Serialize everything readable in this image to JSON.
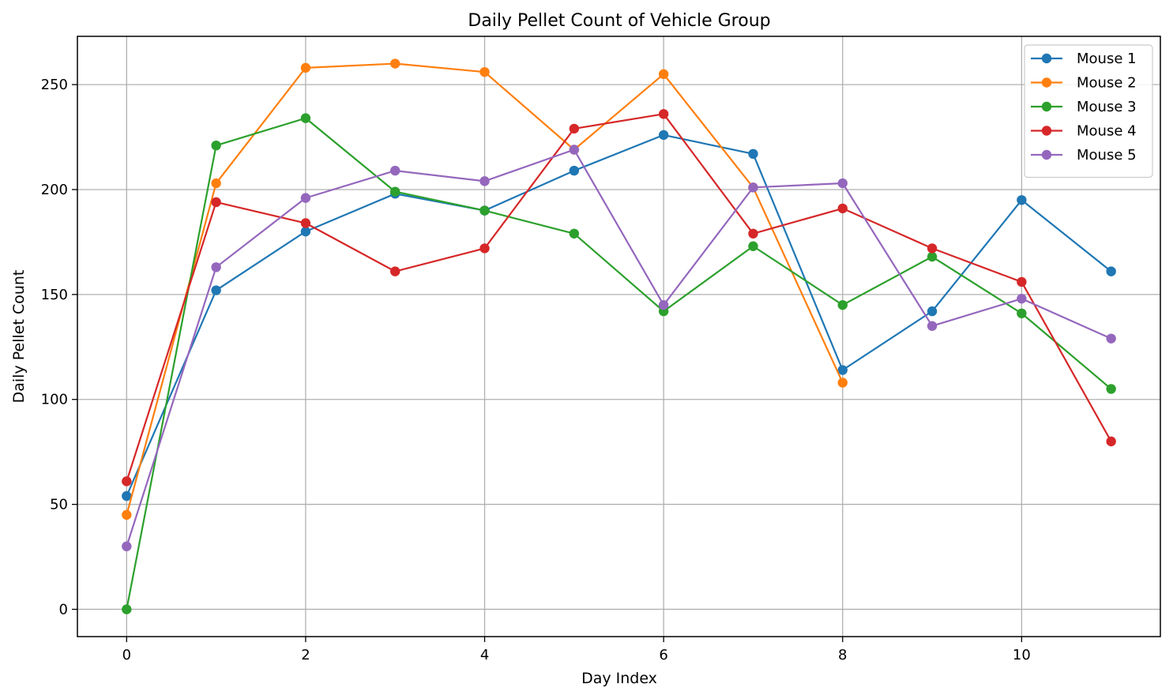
{
  "chart_data": {
    "type": "line",
    "title": "Daily Pellet Count of Vehicle Group",
    "xlabel": "Day Index",
    "ylabel": "Daily Pellet Count",
    "xlim": [
      -0.55,
      11.55
    ],
    "ylim": [
      -13,
      273
    ],
    "x_ticks": [
      0,
      2,
      4,
      6,
      8,
      10
    ],
    "y_ticks": [
      0,
      50,
      100,
      150,
      200,
      250
    ],
    "grid": true,
    "legend_position": "upper right",
    "x": [
      0,
      1,
      2,
      3,
      4,
      5,
      6,
      7,
      8,
      9,
      10,
      11
    ],
    "series": [
      {
        "name": "Mouse 1",
        "color": "#1f77b4",
        "values": [
          54,
          152,
          180,
          198,
          190,
          209,
          226,
          217,
          114,
          142,
          195,
          161
        ]
      },
      {
        "name": "Mouse 2",
        "color": "#ff7f0e",
        "values": [
          45,
          203,
          258,
          260,
          256,
          219,
          255,
          201,
          108,
          null,
          null,
          null
        ]
      },
      {
        "name": "Mouse 3",
        "color": "#2ca02c",
        "values": [
          0,
          221,
          234,
          199,
          190,
          179,
          142,
          173,
          145,
          168,
          141,
          105
        ]
      },
      {
        "name": "Mouse 4",
        "color": "#d62728",
        "values": [
          61,
          194,
          184,
          161,
          172,
          229,
          236,
          179,
          191,
          172,
          156,
          80
        ]
      },
      {
        "name": "Mouse 5",
        "color": "#9467bd",
        "values": [
          30,
          163,
          196,
          209,
          204,
          219,
          145,
          201,
          203,
          135,
          148,
          129
        ]
      }
    ]
  }
}
